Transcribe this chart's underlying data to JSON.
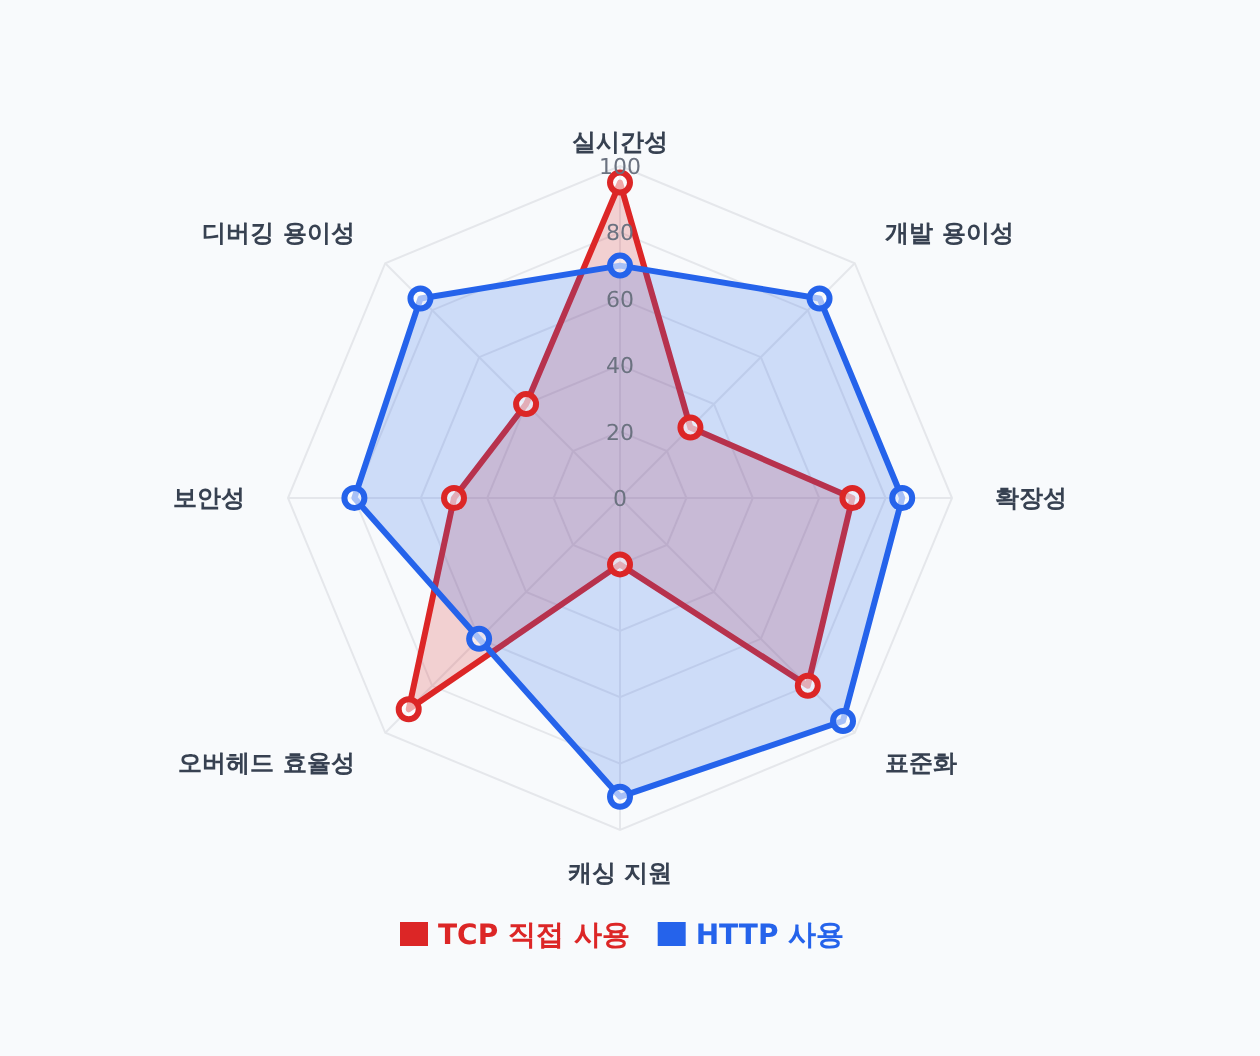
{
  "chart_data": {
    "type": "radar",
    "categories": [
      "실시간성",
      "개발 용이성",
      "확장성",
      "표준화",
      "캐싱 지원",
      "오버헤드 효율성",
      "보안성",
      "디버깅 용이성"
    ],
    "series": [
      {
        "name": "TCP 직접 사용",
        "color": "#dc2626",
        "values": [
          95,
          30,
          70,
          80,
          20,
          90,
          50,
          40
        ]
      },
      {
        "name": "HTTP 사용",
        "color": "#2563eb",
        "values": [
          70,
          85,
          85,
          95,
          90,
          60,
          80,
          85
        ]
      }
    ],
    "ylim": [
      0,
      100
    ],
    "yticks": [
      0,
      20,
      40,
      60,
      80,
      100
    ],
    "grid": true,
    "legend": "bottom",
    "marker": "circle"
  }
}
